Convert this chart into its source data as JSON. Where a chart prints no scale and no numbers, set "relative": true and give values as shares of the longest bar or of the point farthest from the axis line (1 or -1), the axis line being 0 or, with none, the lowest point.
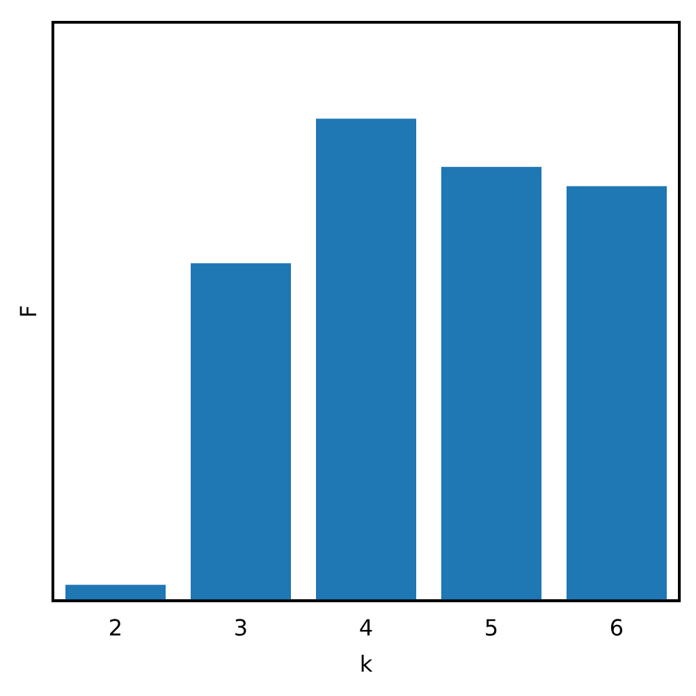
{
  "chart_data": {
    "type": "bar",
    "xlabel": "k",
    "ylabel": "F",
    "categories": [
      "2",
      "3",
      "4",
      "5",
      "6"
    ],
    "values": [
      0.033,
      0.7,
      1,
      0.9,
      0.86
    ],
    "color": "#1f77b4",
    "relative": true,
    "grid": false,
    "legend": false
  }
}
